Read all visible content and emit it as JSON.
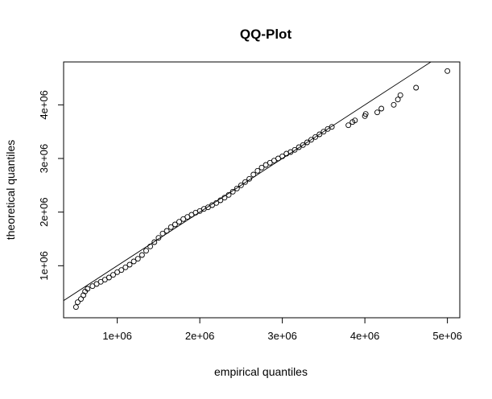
{
  "chart_data": {
    "type": "scatter",
    "title": "QQ-Plot",
    "xlabel": "empirical quantiles",
    "ylabel": "theoretical quantiles",
    "xlim": [
      350000,
      5150000
    ],
    "ylim": [
      30000,
      4800000
    ],
    "xticks": [
      1000000,
      2000000,
      3000000,
      4000000,
      5000000
    ],
    "xtick_labels": [
      "1e+06",
      "2e+06",
      "3e+06",
      "4e+06",
      "5e+06"
    ],
    "yticks": [
      1000000,
      2000000,
      3000000,
      4000000
    ],
    "ytick_labels": [
      "1e+06",
      "2e+06",
      "3e+06",
      "4e+06"
    ],
    "grid": false,
    "marker": "open-circle",
    "reference_line": {
      "slope": 1.0,
      "intercept": 0,
      "color": "#000000"
    },
    "points": [
      [
        500000,
        230000
      ],
      [
        520000,
        320000
      ],
      [
        560000,
        380000
      ],
      [
        590000,
        450000
      ],
      [
        610000,
        520000
      ],
      [
        640000,
        570000
      ],
      [
        700000,
        620000
      ],
      [
        750000,
        660000
      ],
      [
        800000,
        700000
      ],
      [
        850000,
        740000
      ],
      [
        900000,
        780000
      ],
      [
        950000,
        830000
      ],
      [
        1000000,
        880000
      ],
      [
        1050000,
        920000
      ],
      [
        1100000,
        970000
      ],
      [
        1150000,
        1020000
      ],
      [
        1200000,
        1080000
      ],
      [
        1250000,
        1130000
      ],
      [
        1300000,
        1200000
      ],
      [
        1350000,
        1280000
      ],
      [
        1400000,
        1360000
      ],
      [
        1450000,
        1440000
      ],
      [
        1500000,
        1520000
      ],
      [
        1550000,
        1600000
      ],
      [
        1600000,
        1650000
      ],
      [
        1650000,
        1720000
      ],
      [
        1700000,
        1770000
      ],
      [
        1750000,
        1820000
      ],
      [
        1800000,
        1870000
      ],
      [
        1850000,
        1910000
      ],
      [
        1900000,
        1950000
      ],
      [
        1950000,
        1990000
      ],
      [
        2000000,
        2020000
      ],
      [
        2050000,
        2060000
      ],
      [
        2100000,
        2090000
      ],
      [
        2150000,
        2130000
      ],
      [
        2200000,
        2170000
      ],
      [
        2250000,
        2220000
      ],
      [
        2300000,
        2270000
      ],
      [
        2350000,
        2320000
      ],
      [
        2400000,
        2380000
      ],
      [
        2450000,
        2440000
      ],
      [
        2500000,
        2500000
      ],
      [
        2550000,
        2560000
      ],
      [
        2600000,
        2620000
      ],
      [
        2650000,
        2700000
      ],
      [
        2700000,
        2770000
      ],
      [
        2750000,
        2830000
      ],
      [
        2800000,
        2880000
      ],
      [
        2850000,
        2920000
      ],
      [
        2900000,
        2960000
      ],
      [
        2950000,
        3000000
      ],
      [
        3000000,
        3040000
      ],
      [
        3050000,
        3090000
      ],
      [
        3100000,
        3120000
      ],
      [
        3150000,
        3160000
      ],
      [
        3200000,
        3210000
      ],
      [
        3250000,
        3250000
      ],
      [
        3300000,
        3300000
      ],
      [
        3350000,
        3350000
      ],
      [
        3400000,
        3400000
      ],
      [
        3450000,
        3450000
      ],
      [
        3500000,
        3500000
      ],
      [
        3550000,
        3550000
      ],
      [
        3600000,
        3590000
      ],
      [
        3800000,
        3620000
      ],
      [
        3850000,
        3680000
      ],
      [
        3880000,
        3710000
      ],
      [
        4000000,
        3790000
      ],
      [
        4010000,
        3830000
      ],
      [
        4150000,
        3860000
      ],
      [
        4200000,
        3930000
      ],
      [
        4350000,
        4000000
      ],
      [
        4400000,
        4100000
      ],
      [
        4430000,
        4180000
      ],
      [
        4620000,
        4320000
      ],
      [
        5000000,
        4630000
      ]
    ]
  }
}
